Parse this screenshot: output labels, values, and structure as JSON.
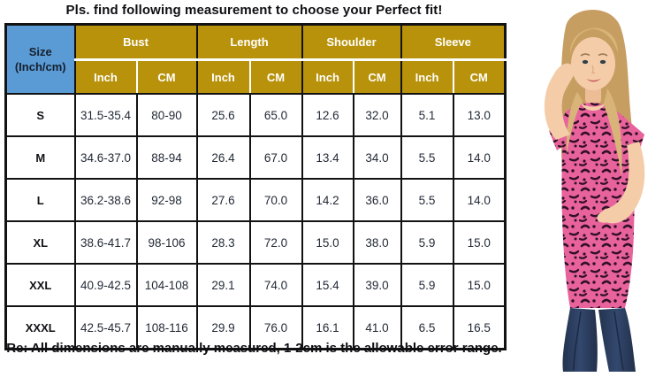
{
  "page": {
    "title": "Pls. find following measurement to choose your Perfect fit!",
    "note": "Re: All dimensions are manually measured, 1-2cm is the allowable error range."
  },
  "colors": {
    "header_gold": "#B8920B",
    "size_cell_blue": "#5B9BD5",
    "table_border": "#121212",
    "top_pink": "#E8639C",
    "leopard_spot": "#311028",
    "jeans_blue": "#2C3D66"
  },
  "table": {
    "size_header_line1": "Size",
    "size_header_line2": "(Inch/cm)",
    "groups": [
      "Bust",
      "Length",
      "Shoulder",
      "Sleeve"
    ],
    "unit_headers": [
      "Inch",
      "CM"
    ],
    "rows": [
      {
        "size": "S",
        "values": [
          "31.5-35.4",
          "80-90",
          "25.6",
          "65.0",
          "12.6",
          "32.0",
          "5.1",
          "13.0"
        ]
      },
      {
        "size": "M",
        "values": [
          "34.6-37.0",
          "88-94",
          "26.4",
          "67.0",
          "13.4",
          "34.0",
          "5.5",
          "14.0"
        ]
      },
      {
        "size": "L",
        "values": [
          "36.2-38.6",
          "92-98",
          "27.6",
          "70.0",
          "14.2",
          "36.0",
          "5.5",
          "14.0"
        ]
      },
      {
        "size": "XL",
        "values": [
          "38.6-41.7",
          "98-106",
          "28.3",
          "72.0",
          "15.0",
          "38.0",
          "5.9",
          "15.0"
        ]
      },
      {
        "size": "XXL",
        "values": [
          "40.9-42.5",
          "104-108",
          "29.1",
          "74.0",
          "15.4",
          "39.0",
          "5.9",
          "15.0"
        ]
      },
      {
        "size": "XXXL",
        "values": [
          "42.5-45.7",
          "108-116",
          "29.9",
          "76.0",
          "16.1",
          "41.0",
          "6.5",
          "16.5"
        ]
      }
    ]
  },
  "model_photo": {
    "description": "Woman with long blonde hair wearing a pink leopard print short-sleeve top and dark blue jeans, one hand in hair, one hand on belly"
  }
}
